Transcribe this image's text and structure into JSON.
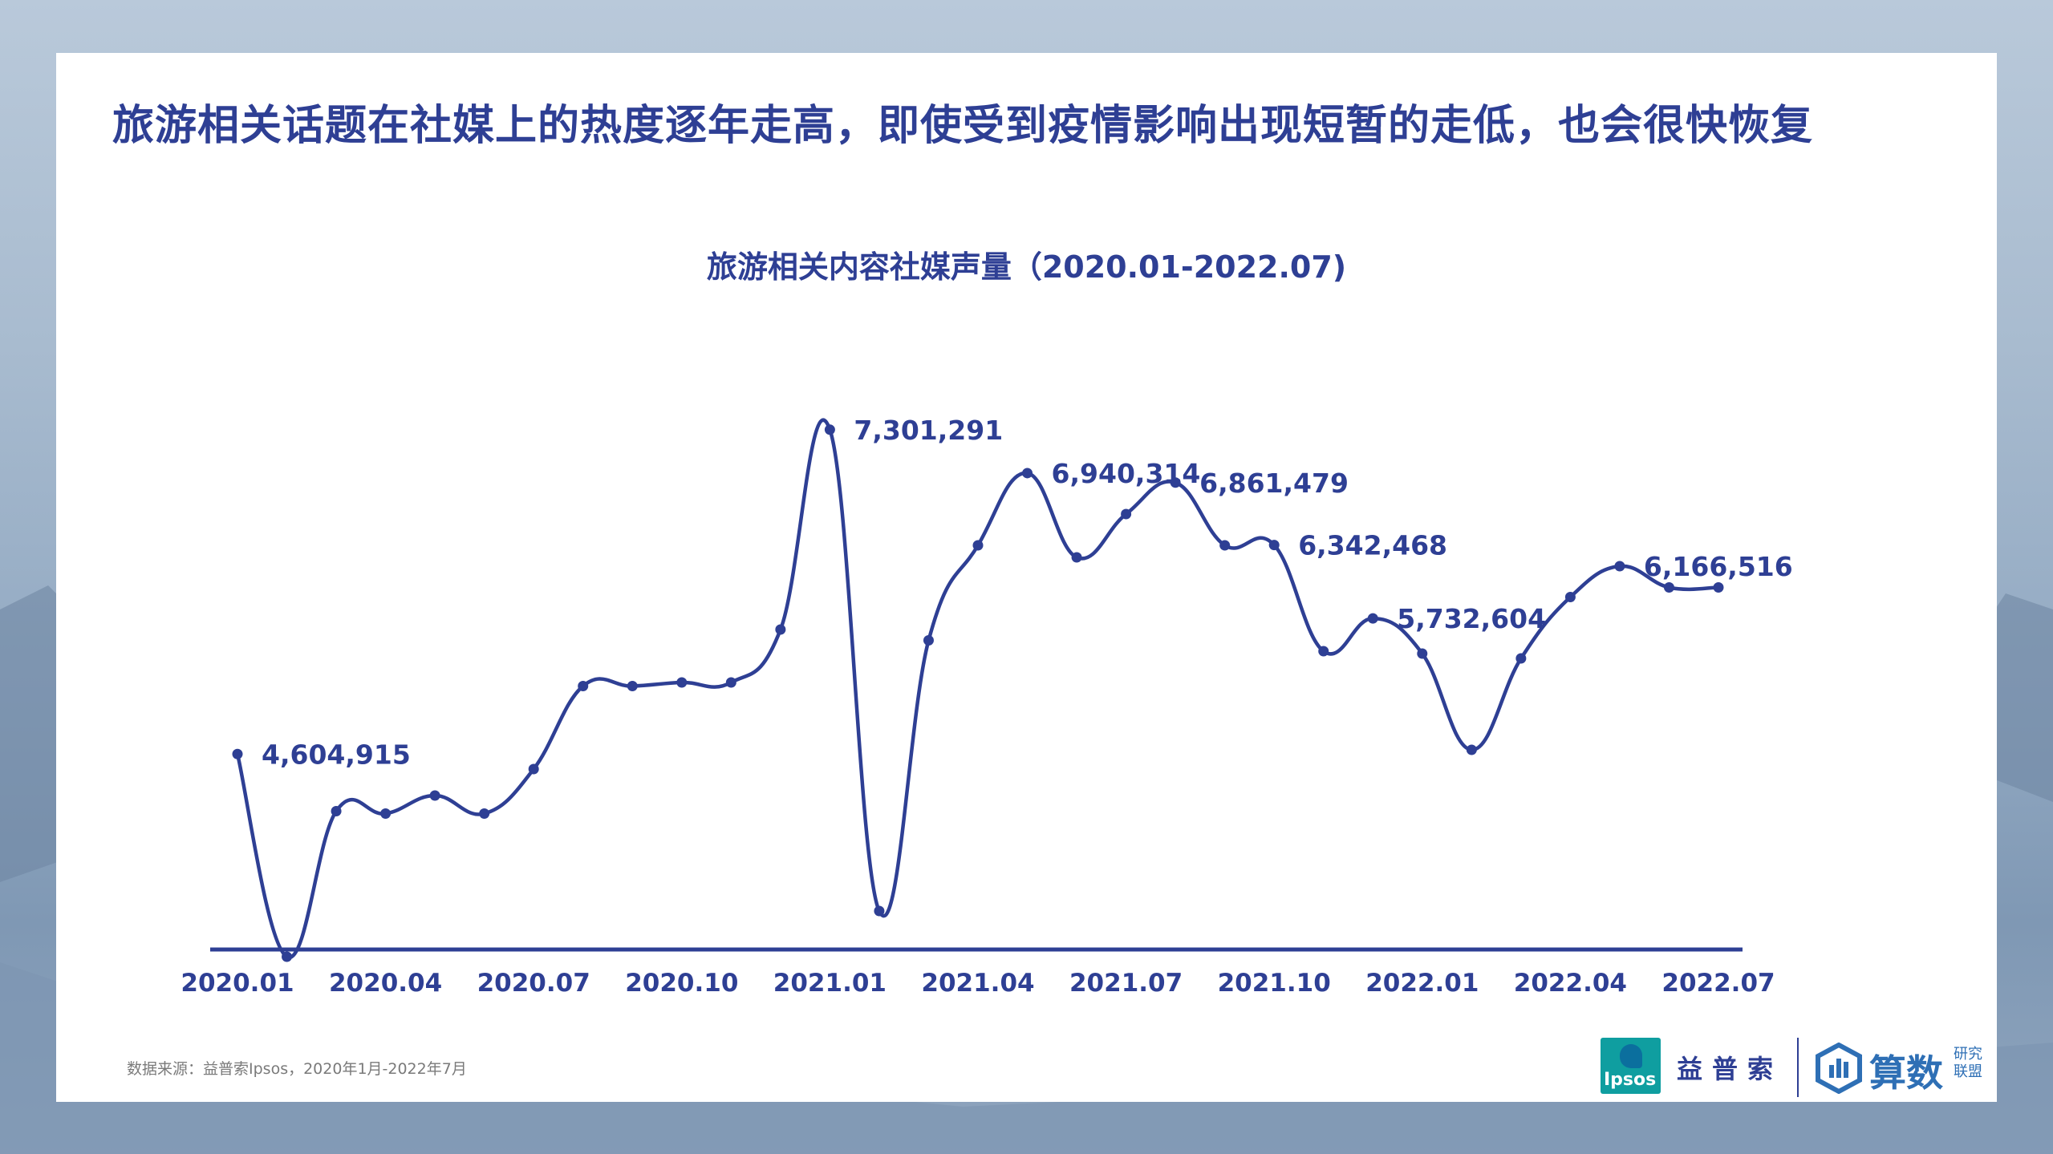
{
  "headline": "旅游相关话题在社媒上的热度逐年走高，即使受到疫情影响出现短暂的走低，也会很快恢复",
  "source_note": "数据来源：益普索Ipsos，2020年1月-2022年7月",
  "logos": {
    "ipsos_mark": "Ipsos",
    "ipsos_cn": "益普索",
    "partner_name": "算数",
    "partner_sub": "研究联盟"
  },
  "colors": {
    "line": "#2e3f94",
    "text": "#2e3f94",
    "partner": "#2e6fb5"
  },
  "chart_data": {
    "type": "line",
    "title": "旅游相关内容社媒声量（2020.01-2022.07)",
    "xlabel": "",
    "ylabel": "",
    "x": [
      "2020.01",
      "2020.02",
      "2020.03",
      "2020.04",
      "2020.05",
      "2020.06",
      "2020.07",
      "2020.08",
      "2020.09",
      "2020.10",
      "2020.11",
      "2020.12",
      "2021.01",
      "2021.02",
      "2021.03",
      "2021.04",
      "2021.05",
      "2021.06",
      "2021.07",
      "2021.08",
      "2021.09",
      "2021.10",
      "2021.11",
      "2021.12",
      "2022.01",
      "2022.02",
      "2022.03",
      "2022.04",
      "2022.05",
      "2022.06",
      "2022.07"
    ],
    "tick_labels": [
      "2020.01",
      "2020.04",
      "2020.07",
      "2020.10",
      "2021.01",
      "2021.04",
      "2021.07",
      "2021.10",
      "2022.01",
      "2022.04",
      "2022.07"
    ],
    "tick_indices": [
      0,
      3,
      6,
      9,
      12,
      15,
      18,
      21,
      24,
      27,
      30
    ],
    "values": [
      4604915,
      2920000,
      4130000,
      4110000,
      4260000,
      4110000,
      4480000,
      5170000,
      5170000,
      5200000,
      5200000,
      5640000,
      7301291,
      3300000,
      5550000,
      6340000,
      6940314,
      6240000,
      6600000,
      6861479,
      6340000,
      6342468,
      5460000,
      5732604,
      5440000,
      4640000,
      5400000,
      5910000,
      6166516,
      5990000,
      5990000
    ],
    "ylim": [
      2700000,
      7500000
    ],
    "data_labels": [
      {
        "index": 0,
        "text": "4,604,915"
      },
      {
        "index": 12,
        "text": "7,301,291"
      },
      {
        "index": 16,
        "text": "6,940,314"
      },
      {
        "index": 19,
        "text": "6,861,479"
      },
      {
        "index": 21,
        "text": "6,342,468"
      },
      {
        "index": 23,
        "text": "5,732,604"
      },
      {
        "index": 28,
        "text": "6,166,516"
      }
    ],
    "grid": false,
    "legend": "none"
  }
}
